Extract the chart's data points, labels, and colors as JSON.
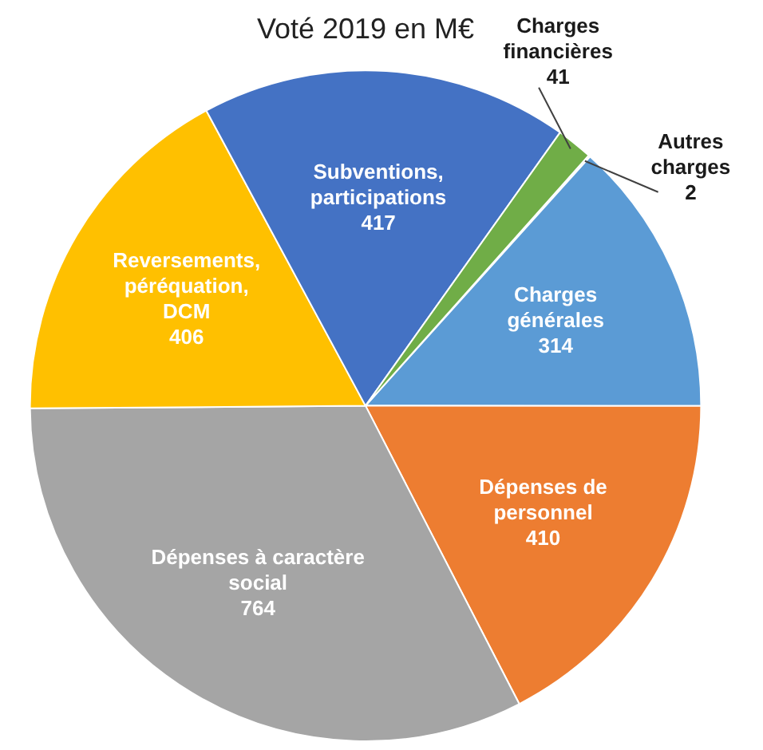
{
  "chart_data": {
    "type": "pie",
    "title": "Voté 2019 en M€",
    "categories": [
      "Autres charges",
      "Charges générales",
      "Dépenses de personnel",
      "Dépenses à caractère social",
      "Reversements, péréquation, DCM",
      "Subventions, participations",
      "Charges financières"
    ],
    "values": [
      2,
      314,
      410,
      764,
      406,
      417,
      41
    ],
    "colors": [
      "#264478",
      "#5b9bd5",
      "#ed7d31",
      "#a5a5a5",
      "#ffc000",
      "#4472c4",
      "#70ad47"
    ],
    "data_labels": true,
    "legend": false
  }
}
